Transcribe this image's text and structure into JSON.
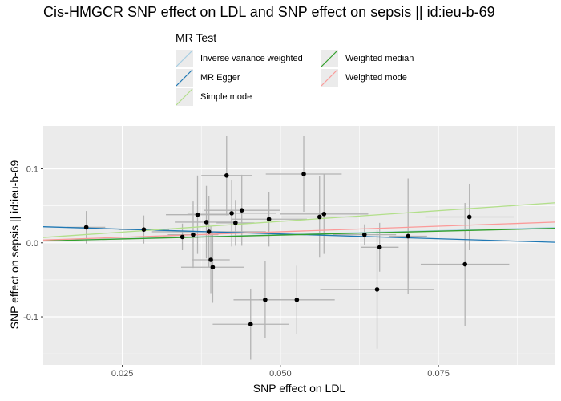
{
  "chart_data": {
    "type": "scatter",
    "title": "Cis-HMGCR SNP effect on LDL and SNP effect on sepsis || id:ieu-b-69",
    "xlabel": "SNP effect on LDL",
    "ylabel": "SNP effect on sepsis || id:ieu-b-69",
    "xlim": [
      0.0125,
      0.0935
    ],
    "ylim": [
      -0.165,
      0.158
    ],
    "x_ticks": [
      0.025,
      0.05,
      0.075
    ],
    "x_tick_labels": [
      "0.025",
      "0.050",
      "0.075"
    ],
    "y_ticks": [
      -0.1,
      0.0,
      0.1
    ],
    "y_tick_labels": [
      "-0.1",
      "0.0",
      "0.1"
    ],
    "grid": true,
    "legend": {
      "title": "MR Test",
      "placement": "top",
      "entries": [
        {
          "name": "Inverse variance weighted",
          "color": "#a6cee3"
        },
        {
          "name": "MR Egger",
          "color": "#1f78b4"
        },
        {
          "name": "Simple mode",
          "color": "#b2df8a"
        },
        {
          "name": "Weighted median",
          "color": "#33a02c"
        },
        {
          "name": "Weighted mode",
          "color": "#fb9a99"
        }
      ]
    },
    "points": [
      {
        "x": 0.0193,
        "y": 0.021,
        "xerr": 0.003,
        "yerr": 0.022
      },
      {
        "x": 0.0284,
        "y": 0.018,
        "xerr": 0.004,
        "yerr": 0.019
      },
      {
        "x": 0.0345,
        "y": 0.008,
        "xerr": 0.003,
        "yerr": 0.018
      },
      {
        "x": 0.0362,
        "y": 0.011,
        "xerr": 0.004,
        "yerr": 0.045
      },
      {
        "x": 0.0369,
        "y": 0.038,
        "xerr": 0.005,
        "yerr": 0.053
      },
      {
        "x": 0.0383,
        "y": 0.028,
        "xerr": 0.005,
        "yerr": 0.049
      },
      {
        "x": 0.0387,
        "y": 0.015,
        "xerr": 0.009,
        "yerr": 0.048
      },
      {
        "x": 0.039,
        "y": -0.023,
        "xerr": 0.003,
        "yerr": 0.045
      },
      {
        "x": 0.0393,
        "y": -0.033,
        "xerr": 0.005,
        "yerr": 0.048
      },
      {
        "x": 0.0415,
        "y": 0.091,
        "xerr": 0.004,
        "yerr": 0.054
      },
      {
        "x": 0.0423,
        "y": 0.04,
        "xerr": 0.007,
        "yerr": 0.045
      },
      {
        "x": 0.0429,
        "y": 0.027,
        "xerr": 0.003,
        "yerr": 0.031
      },
      {
        "x": 0.0439,
        "y": 0.044,
        "xerr": 0.006,
        "yerr": 0.048
      },
      {
        "x": 0.0453,
        "y": -0.11,
        "xerr": 0.006,
        "yerr": 0.048
      },
      {
        "x": 0.0476,
        "y": -0.077,
        "xerr": 0.005,
        "yerr": 0.052
      },
      {
        "x": 0.0482,
        "y": 0.032,
        "xerr": 0.006,
        "yerr": 0.037
      },
      {
        "x": 0.0526,
        "y": -0.077,
        "xerr": 0.006,
        "yerr": 0.046
      },
      {
        "x": 0.0537,
        "y": 0.093,
        "xerr": 0.006,
        "yerr": 0.051
      },
      {
        "x": 0.0562,
        "y": 0.035,
        "xerr": 0.006,
        "yerr": 0.055
      },
      {
        "x": 0.0569,
        "y": 0.039,
        "xerr": 0.007,
        "yerr": 0.054
      },
      {
        "x": 0.0633,
        "y": 0.011,
        "xerr": 0.005,
        "yerr": 0.014
      },
      {
        "x": 0.0653,
        "y": -0.063,
        "xerr": 0.009,
        "yerr": 0.08
      },
      {
        "x": 0.0657,
        "y": -0.006,
        "xerr": 0.003,
        "yerr": 0.033
      },
      {
        "x": 0.0702,
        "y": 0.009,
        "xerr": 0.003,
        "yerr": 0.078
      },
      {
        "x": 0.0792,
        "y": -0.029,
        "xerr": 0.007,
        "yerr": 0.083
      },
      {
        "x": 0.0799,
        "y": 0.035,
        "xerr": 0.007,
        "yerr": 0.045
      }
    ],
    "lines": [
      {
        "name": "Inverse variance weighted",
        "color": "#a6cee3",
        "intercept": 0,
        "slope": 0.22
      },
      {
        "name": "MR Egger",
        "color": "#1f78b4",
        "intercept": 0.025,
        "slope": -0.26
      },
      {
        "name": "Simple mode",
        "color": "#b2df8a",
        "intercept": 0,
        "slope": 0.58
      },
      {
        "name": "Weighted median",
        "color": "#33a02c",
        "intercept": 0,
        "slope": 0.21
      },
      {
        "name": "Weighted mode",
        "color": "#fb9a99",
        "intercept": 0,
        "slope": 0.3
      }
    ]
  }
}
